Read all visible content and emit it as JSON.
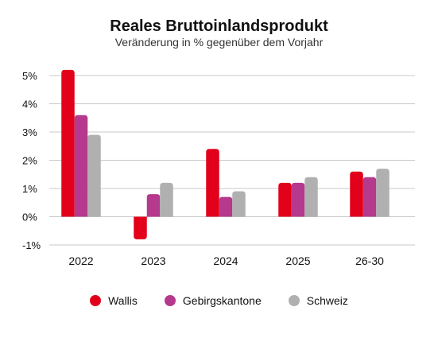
{
  "chart_data": {
    "type": "bar",
    "title": "Reales Bruttoinlandsprodukt",
    "subtitle": "Veränderung in % gegenüber dem Vorjahr",
    "categories": [
      "2022",
      "2023",
      "2024",
      "2025",
      "26-30"
    ],
    "series": [
      {
        "name": "Wallis",
        "color": "#e2001a",
        "values": [
          5.2,
          -0.8,
          2.4,
          1.2,
          1.6
        ]
      },
      {
        "name": "Gebirgskantone",
        "color": "#b5398c",
        "values": [
          3.6,
          0.8,
          0.7,
          1.2,
          1.4
        ]
      },
      {
        "name": "Schweiz",
        "color": "#b0b0b0",
        "values": [
          2.9,
          1.2,
          0.9,
          1.4,
          1.7
        ]
      }
    ],
    "ylim": [
      -1,
      5
    ],
    "yticks": [
      -1,
      0,
      1,
      2,
      3,
      4,
      5
    ],
    "ytick_labels": [
      "-1%",
      "0%",
      "1%",
      "2%",
      "3%",
      "4%",
      "5%"
    ],
    "grid": true,
    "legend_position": "bottom"
  }
}
